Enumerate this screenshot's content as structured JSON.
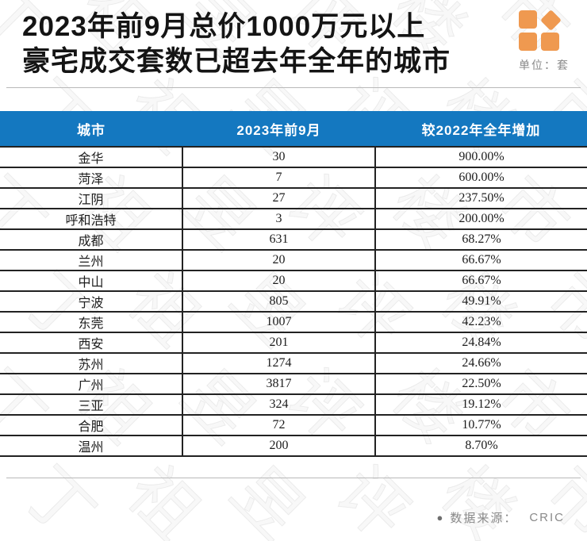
{
  "header": {
    "title_line1": "2023年前9月总价1000万元以上",
    "title_line2": "豪宅成交套数已超去年全年的城市",
    "unit_label": "单位：套"
  },
  "footer": {
    "bullet": "●",
    "source_label": "数据来源：",
    "source_value": "CRIC"
  },
  "watermark_text": "丁祖昱评楼市",
  "colors": {
    "header_bar_blue": "#1478c0",
    "logo_orange": "#ef9950",
    "row_border_dark": "#222222",
    "divider_gray": "#b9b9b9",
    "muted_text_gray": "#8a8a8a"
  },
  "chart_data": {
    "type": "table",
    "title": "2023年前9月总价1000万元以上豪宅成交套数已超去年全年的城市",
    "unit": "套",
    "columns": [
      "城市",
      "2023年前9月",
      "较2022年全年增加"
    ],
    "rows": [
      [
        "金华",
        "30",
        "900.00%"
      ],
      [
        "菏泽",
        "7",
        "600.00%"
      ],
      [
        "江阴",
        "27",
        "237.50%"
      ],
      [
        "呼和浩特",
        "3",
        "200.00%"
      ],
      [
        "成都",
        "631",
        "68.27%"
      ],
      [
        "兰州",
        "20",
        "66.67%"
      ],
      [
        "中山",
        "20",
        "66.67%"
      ],
      [
        "宁波",
        "805",
        "49.91%"
      ],
      [
        "东莞",
        "1007",
        "42.23%"
      ],
      [
        "西安",
        "201",
        "24.84%"
      ],
      [
        "苏州",
        "1274",
        "24.66%"
      ],
      [
        "广州",
        "3817",
        "22.50%"
      ],
      [
        "三亚",
        "324",
        "19.12%"
      ],
      [
        "合肥",
        "72",
        "10.77%"
      ],
      [
        "温州",
        "200",
        "8.70%"
      ]
    ],
    "source": "数据来源： CRIC",
    "legend_position": "none",
    "grid": "on"
  }
}
